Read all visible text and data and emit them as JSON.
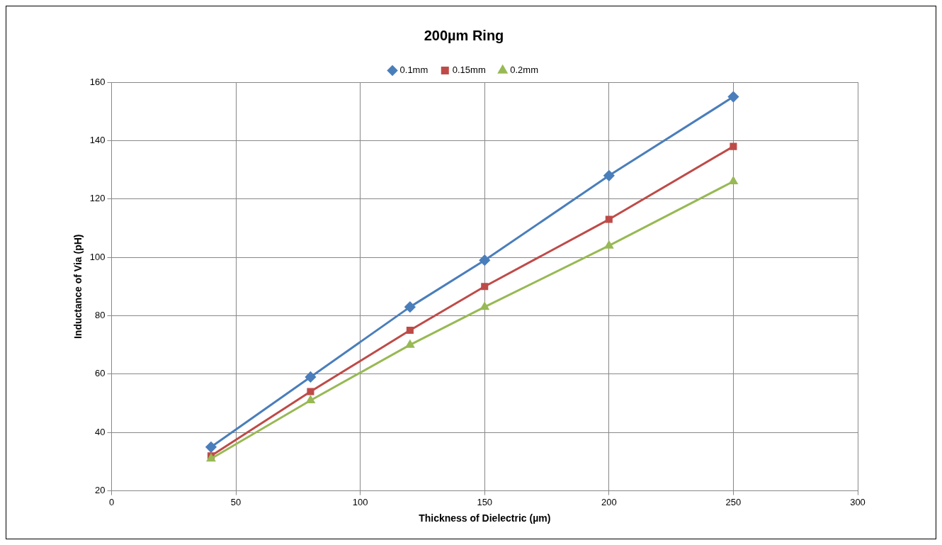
{
  "chart_data": {
    "type": "line",
    "title": "200µm Ring",
    "xlabel": "Thickness of Dielectric (µm)",
    "ylabel": "Inductance of Via (pH)",
    "x": [
      40,
      80,
      120,
      150,
      200,
      250
    ],
    "series": [
      {
        "name": "0.1mm",
        "color": "#4a7ebb",
        "marker": "diamond",
        "values": [
          35,
          59,
          83,
          99,
          128,
          155
        ]
      },
      {
        "name": "0.15mm",
        "color": "#be4b48",
        "marker": "square",
        "values": [
          32,
          54,
          75,
          90,
          113,
          138
        ]
      },
      {
        "name": "0.2mm",
        "color": "#98b954",
        "marker": "triangle",
        "values": [
          31,
          51,
          70,
          83,
          104,
          126
        ]
      }
    ],
    "xlim": [
      0,
      300
    ],
    "xticks": [
      0,
      50,
      100,
      150,
      200,
      250,
      300
    ],
    "ylim": [
      20,
      160
    ],
    "yticks": [
      20,
      40,
      60,
      80,
      100,
      120,
      140,
      160
    ],
    "grid": true,
    "legend": "top",
    "line_style": "solid"
  }
}
